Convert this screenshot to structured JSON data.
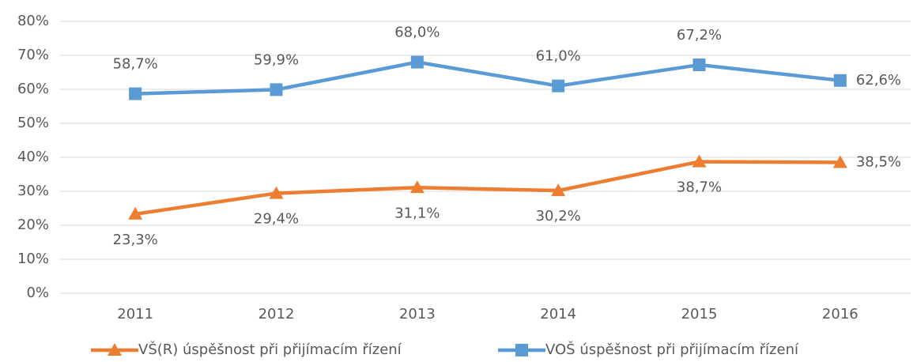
{
  "chart_data": {
    "type": "line",
    "categories": [
      "2011",
      "2012",
      "2013",
      "2014",
      "2015",
      "2016"
    ],
    "series": [
      {
        "name": "VŠ(R) úspěšnost při přijímacím řízení",
        "color": "#ed7d31",
        "marker": "triangle",
        "values": [
          23.3,
          29.4,
          31.1,
          30.2,
          38.7,
          38.5
        ],
        "value_labels": [
          "23,3%",
          "29,4%",
          "31,1%",
          "30,2%",
          "38,7%",
          "38,5%"
        ]
      },
      {
        "name": "VOŠ úspěšnost při přijímacím řízení",
        "color": "#5b9bd5",
        "marker": "square",
        "values": [
          58.7,
          59.9,
          68.0,
          61.0,
          67.2,
          62.6
        ],
        "value_labels": [
          "58,7%",
          "59,9%",
          "68,0%",
          "61,0%",
          "67,2%",
          "62,6%"
        ]
      }
    ],
    "ylim": [
      0,
      80
    ],
    "yticks": [
      {
        "value": 0,
        "label": "0%"
      },
      {
        "value": 10,
        "label": "10%"
      },
      {
        "value": 20,
        "label": "20%"
      },
      {
        "value": 30,
        "label": "30%"
      },
      {
        "value": 40,
        "label": "40%"
      },
      {
        "value": 50,
        "label": "50%"
      },
      {
        "value": 60,
        "label": "60%"
      },
      {
        "value": 70,
        "label": "70%"
      },
      {
        "value": 80,
        "label": "80%"
      }
    ],
    "grid": true,
    "legend": "bottom"
  }
}
